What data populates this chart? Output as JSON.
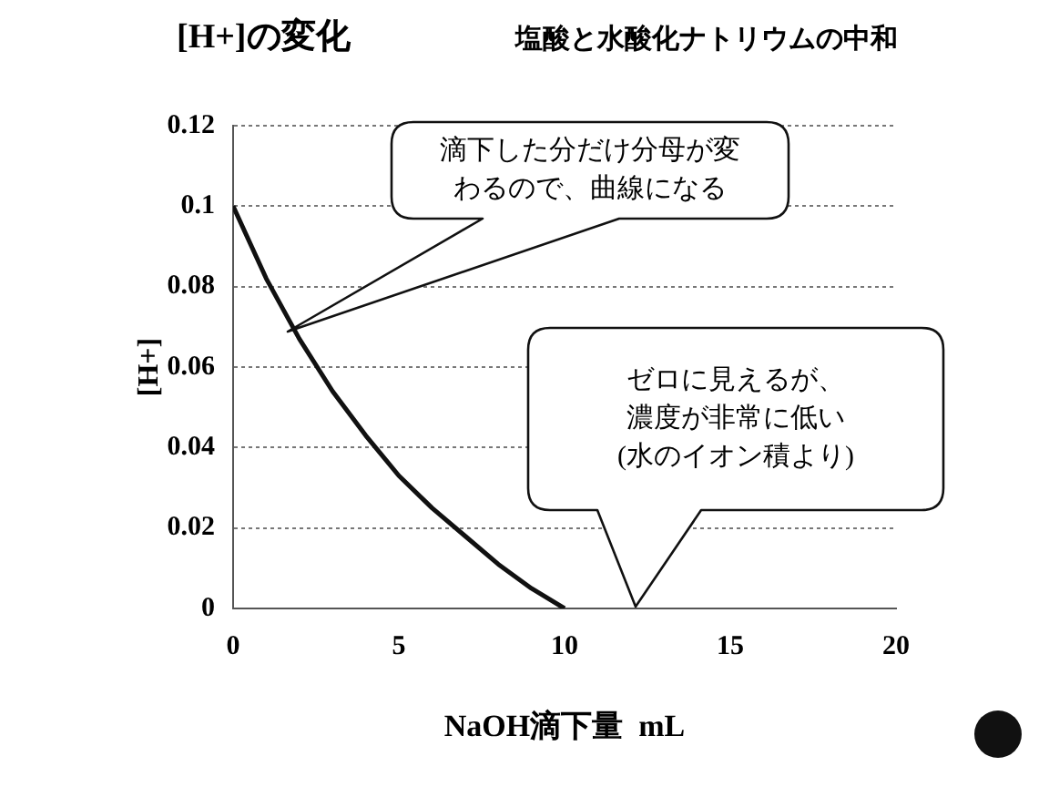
{
  "chart_data": {
    "type": "line",
    "title": "[H+]の変化",
    "subtitle": "塩酸と水酸化ナトリウムの中和",
    "xlabel": "NaOH滴下量  mL",
    "ylabel": "[H+]",
    "x": [
      0,
      1,
      2,
      3,
      4,
      5,
      6,
      7,
      8,
      9,
      10
    ],
    "series": [
      {
        "color": "#111111",
        "values": [
          0.1,
          0.082,
          0.067,
          0.054,
          0.043,
          0.033,
          0.025,
          0.018,
          0.011,
          0.005,
          0
        ]
      }
    ],
    "xlim": [
      0,
      20
    ],
    "xticks": [
      0,
      5,
      10,
      15,
      20
    ],
    "ylim": [
      0,
      0.12
    ],
    "yticks": [
      0,
      0.02,
      0.04,
      0.06,
      0.08,
      0.1,
      0.12
    ],
    "grid": "y",
    "legend": false,
    "marker": "none",
    "line_style": "solid",
    "annotations": [
      "滴下した分だけ分母が変わるので、曲線になる",
      "ゼロに見えるが、濃度が非常に低い(水のイオン積より)"
    ]
  }
}
